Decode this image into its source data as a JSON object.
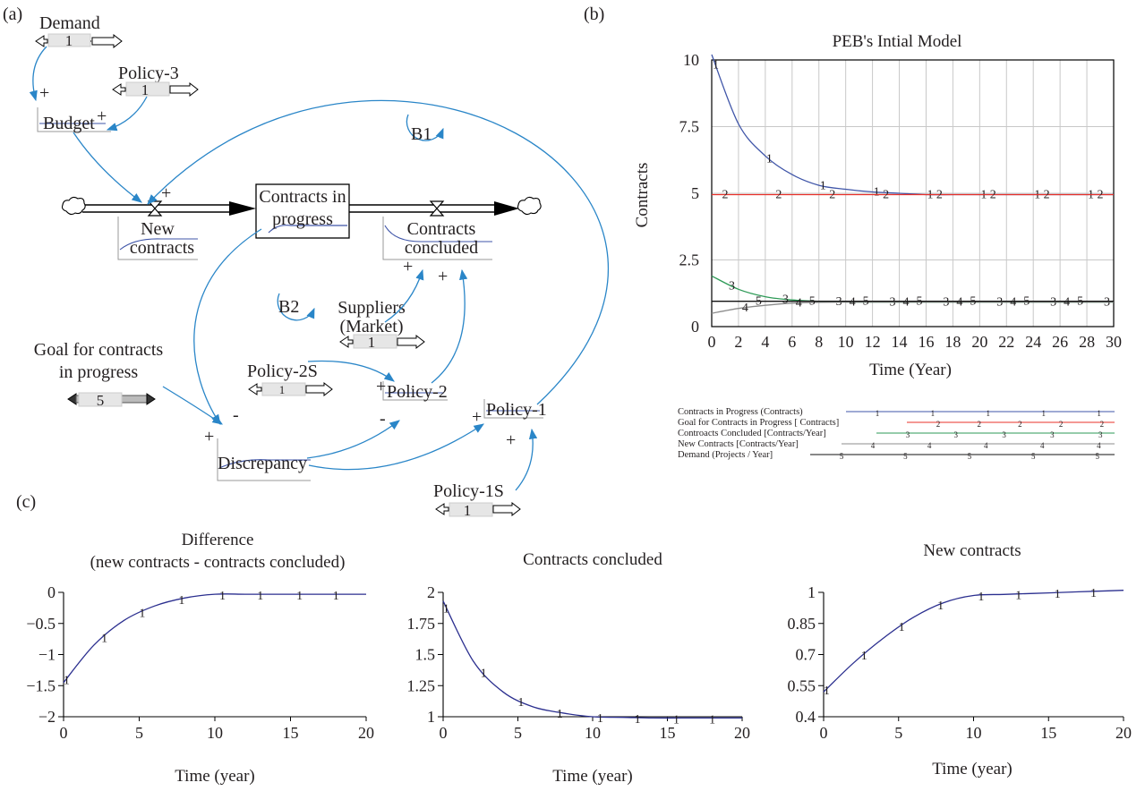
{
  "panels": {
    "a": "(a)",
    "b": "(b)",
    "c": "(c)"
  },
  "diagram": {
    "demand": {
      "label": "Demand",
      "value": "1"
    },
    "policy3": {
      "label": "Policy-3",
      "value": "1"
    },
    "budget": "Budget",
    "new_contracts": {
      "line1": "New",
      "line2": "contracts"
    },
    "contracts_in_progress": {
      "line1": "Contracts in",
      "line2": "progress"
    },
    "contracts_concluded": {
      "line1": "Contracts",
      "line2": "concluded"
    },
    "loop_b1": "B1",
    "loop_b2": "B2",
    "suppliers": {
      "line1": "Suppliers",
      "line2": "(Market)",
      "value": "1"
    },
    "goal": {
      "line1": "Goal for contracts",
      "line2": "in progress",
      "value": "5"
    },
    "policy2s": {
      "label": "Policy-2S",
      "value": "1"
    },
    "policy2": "Policy-2",
    "policy1": "Policy-1",
    "policy1s": {
      "label": "Policy-1S",
      "value": "1"
    },
    "discrepancy": "Discrepancy",
    "signs": {
      "plus": "+",
      "minus": "-"
    },
    "colors": {
      "link": "#2a86c8",
      "pipe": "#000000",
      "marker": "#5a7fbf"
    }
  },
  "chart_data": [
    {
      "id": "b",
      "type": "line",
      "title": "PEB's Intial Model",
      "xlabel": "Time (Year)",
      "ylabel": "Contracts",
      "xlim": [
        0,
        30
      ],
      "ylim": [
        0,
        10
      ],
      "xticks": [
        0,
        2,
        4,
        6,
        8,
        10,
        12,
        14,
        16,
        18,
        20,
        22,
        24,
        26,
        28,
        30
      ],
      "yticks": [
        {
          "v": 0,
          "t": "0"
        },
        {
          "v": 2.5,
          "t": "2.5"
        },
        {
          "v": 5,
          "t": "5"
        },
        {
          "v": 7.5,
          "t": "7.5"
        },
        {
          "v": 10,
          "t": "10"
        }
      ],
      "grid": true,
      "legend_position": "bottom",
      "series": [
        {
          "name": "Contracts in Progress (Contracts)",
          "marker": "1",
          "color": "#3f55a8",
          "x": [
            0,
            2,
            4,
            6,
            8,
            10,
            12,
            14,
            16,
            18,
            20,
            25,
            30
          ],
          "y": [
            10.2,
            7.6,
            6.4,
            5.7,
            5.3,
            5.15,
            5.05,
            5.0,
            4.95,
            4.95,
            4.95,
            4.95,
            4.95
          ]
        },
        {
          "name": "Goal for Contracts in Progress [ Contracts]",
          "marker": "2",
          "color": "#e8302a",
          "x": [
            0,
            30
          ],
          "y": [
            4.95,
            4.95
          ]
        },
        {
          "name": "Controacts Concluded [Contracts/Year]",
          "marker": "3",
          "color": "#2e9a57",
          "x": [
            0,
            2,
            4,
            6,
            8,
            10,
            12,
            30
          ],
          "y": [
            1.9,
            1.4,
            1.12,
            1.0,
            0.95,
            0.93,
            0.92,
            0.92
          ]
        },
        {
          "name": "New Contracts [Contracts/Year]",
          "marker": "4",
          "color": "#8c8c8c",
          "x": [
            0,
            2,
            4,
            6,
            8,
            10,
            12,
            30
          ],
          "y": [
            0.5,
            0.68,
            0.8,
            0.88,
            0.91,
            0.92,
            0.92,
            0.92
          ]
        },
        {
          "name": "Demand (Projects / Year]",
          "marker": "5",
          "color": "#111111",
          "x": [
            0,
            30
          ],
          "y": [
            0.95,
            0.95
          ]
        }
      ]
    },
    {
      "id": "c1",
      "type": "line",
      "title": "Difference",
      "subtitle": "(new contracts - contracts concluded)",
      "xlabel": "Time (year)",
      "xlim": [
        0,
        20
      ],
      "ylim": [
        -2,
        0
      ],
      "xticks": [
        0,
        5,
        10,
        15,
        20
      ],
      "yticks": [
        {
          "v": 0,
          "t": "0"
        },
        {
          "v": -0.5,
          "t": "-0.5"
        },
        {
          "v": -1,
          "t": "-1"
        },
        {
          "v": -1.5,
          "t": "-1.5"
        },
        {
          "v": -2,
          "t": "-2"
        }
      ],
      "series": [
        {
          "marker": "1",
          "color": "#2b2f8f",
          "x": [
            0,
            2,
            4,
            6,
            8,
            10,
            12,
            14,
            16,
            18,
            20
          ],
          "y": [
            -1.45,
            -0.85,
            -0.45,
            -0.22,
            -0.09,
            -0.03,
            -0.03,
            -0.03,
            -0.03,
            -0.03,
            -0.03
          ]
        }
      ]
    },
    {
      "id": "c2",
      "type": "line",
      "title": "Contracts concluded",
      "xlabel": "Time (year)",
      "xlim": [
        0,
        20
      ],
      "ylim": [
        1,
        2
      ],
      "xticks": [
        0,
        5,
        10,
        15,
        20
      ],
      "yticks": [
        {
          "v": 1,
          "t": "1"
        },
        {
          "v": 1.25,
          "t": "1.25"
        },
        {
          "v": 1.5,
          "t": "1.5"
        },
        {
          "v": 1.75,
          "t": "1.75"
        },
        {
          "v": 2,
          "t": "2"
        }
      ],
      "series": [
        {
          "marker": "1",
          "color": "#2b2f8f",
          "x": [
            0,
            2,
            4,
            6,
            8,
            10,
            12,
            14,
            16,
            18,
            20
          ],
          "y": [
            1.93,
            1.45,
            1.2,
            1.08,
            1.03,
            1.0,
            0.995,
            0.99,
            0.99,
            0.99,
            0.99
          ]
        }
      ]
    },
    {
      "id": "c3",
      "type": "line",
      "title": "New contracts",
      "xlabel": "Time (year)",
      "xlim": [
        0,
        20
      ],
      "ylim": [
        0.4,
        1
      ],
      "xticks": [
        0,
        5,
        10,
        15,
        20
      ],
      "yticks": [
        {
          "v": 1,
          "t": "1"
        },
        {
          "v": 0.85,
          "t": "0.85"
        },
        {
          "v": 0.7,
          "t": "0.7"
        },
        {
          "v": 0.55,
          "t": "0.55"
        },
        {
          "v": 0.4,
          "t": "0.4"
        }
      ],
      "series": [
        {
          "marker": "1",
          "color": "#2b2f8f",
          "x": [
            0,
            2,
            4,
            6,
            8,
            10,
            12,
            14,
            16,
            18,
            20
          ],
          "y": [
            0.52,
            0.66,
            0.78,
            0.88,
            0.95,
            0.985,
            0.99,
            0.995,
            1.0,
            1.005,
            1.01
          ]
        }
      ]
    }
  ]
}
